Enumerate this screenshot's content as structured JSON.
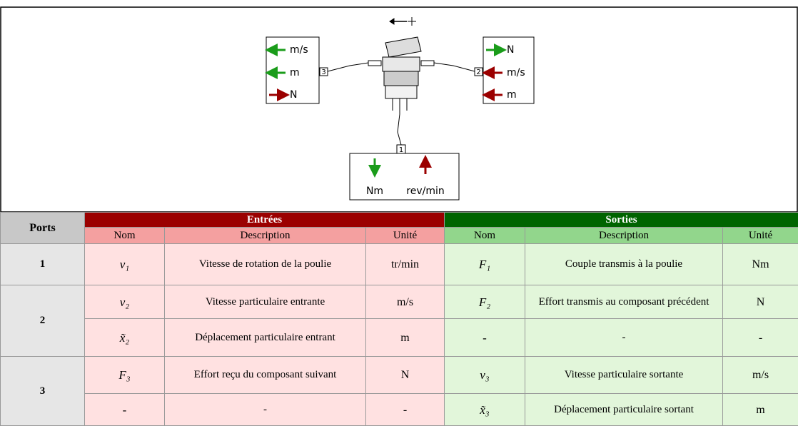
{
  "diagram": {
    "left": {
      "port": "3",
      "labels": [
        "m/s",
        "m",
        "N"
      ]
    },
    "right": {
      "port": "2",
      "labels": [
        "N",
        "m/s",
        "m"
      ]
    },
    "bottom": {
      "port": "1",
      "labels": [
        "Nm",
        "rev/min"
      ]
    }
  },
  "table": {
    "ports": "Ports",
    "inputs": "Entrées",
    "outputs": "Sorties",
    "columns": [
      "Nom",
      "Description",
      "Unité",
      "Nom",
      "Description",
      "Unité"
    ],
    "groups": [
      {
        "port": "1",
        "rows": [
          [
            "v₁",
            "Vitesse de rotation de la poulie",
            "tr/min",
            "F₁",
            "Couple transmis à la poulie",
            "Nm"
          ]
        ]
      },
      {
        "port": "2",
        "rows": [
          [
            "v₂",
            "Vitesse particulaire entrante",
            "m/s",
            "F₂",
            "Effort transmis au composant précédent",
            "N"
          ],
          [
            "x̃₂",
            "Déplacement particulaire entrant",
            "m",
            "-",
            "-",
            "-"
          ]
        ]
      },
      {
        "port": "3",
        "rows": [
          [
            "F₃",
            "Effort reçu du composant suivant",
            "N",
            "v₃",
            "Vitesse particulaire sortante",
            "m/s"
          ],
          [
            "-",
            "-",
            "-",
            "x̃₃",
            "Déplacement particulaire sortant",
            "m"
          ]
        ]
      }
    ]
  }
}
